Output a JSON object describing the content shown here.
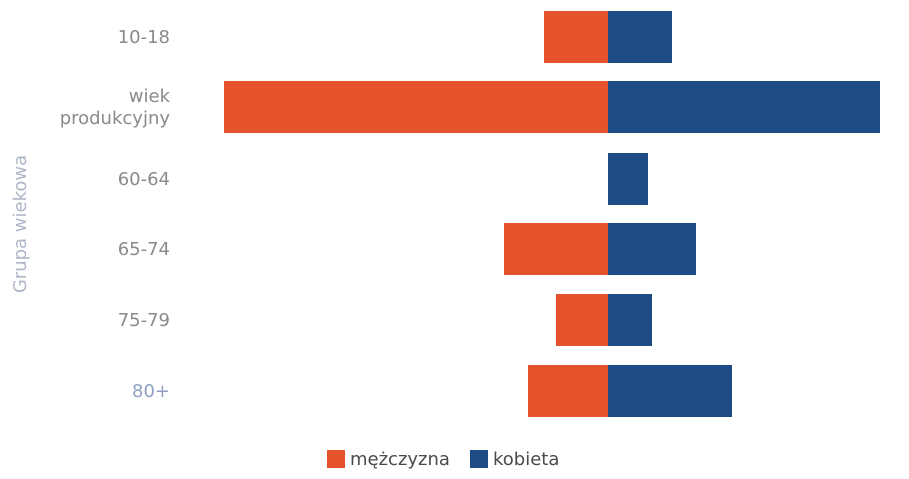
{
  "chart_data": {
    "type": "bar",
    "orientation": "horizontal",
    "stacked": "diverging",
    "categories": [
      "10-18",
      "wiek produkcyjny",
      "60-64",
      "65-74",
      "75-79",
      "80+"
    ],
    "category_lines": [
      [
        "10-18"
      ],
      [
        "wiek",
        "produkcyjny"
      ],
      [
        "60-64"
      ],
      [
        "65-74"
      ],
      [
        "75-79"
      ],
      [
        "80+"
      ]
    ],
    "series": [
      {
        "name": "mężczyzna",
        "color": "#e4532b",
        "direction": "left",
        "values": [
          1.6,
          9.6,
          0,
          2.6,
          1.3,
          2.0
        ]
      },
      {
        "name": "kobieta",
        "color": "#1c4b85",
        "direction": "right",
        "values": [
          1.6,
          6.8,
          1.0,
          2.2,
          1.1,
          3.1
        ]
      }
    ],
    "ylabel": "Grupa wiekowa",
    "category_label_colors": [
      "#8a8a8a",
      "#8a8a8a",
      "#8a8a8a",
      "#8a8a8a",
      "#8a8a8a",
      "#8fa0c4"
    ],
    "ylabel_color": "#aeb6c9",
    "grid": false,
    "legend": "bottom-center"
  }
}
